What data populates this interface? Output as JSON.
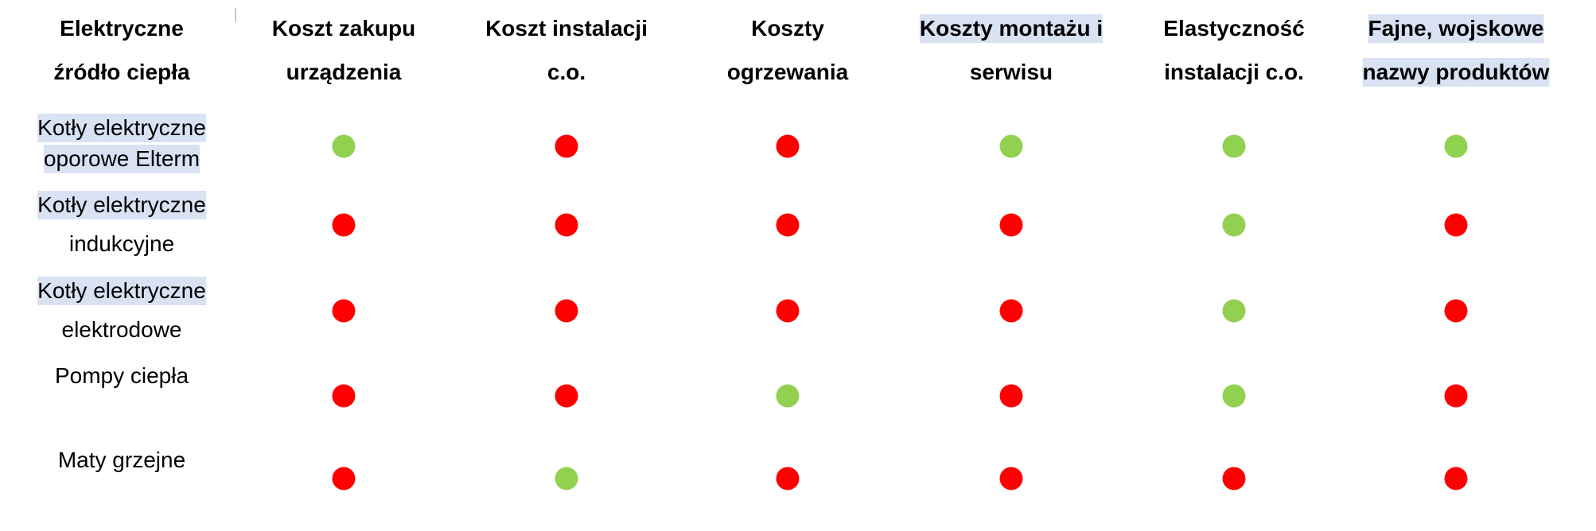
{
  "table": {
    "headers": [
      [
        "Elektryczne",
        "źródło ciepła"
      ],
      [
        "Koszt zakupu",
        "urządzenia"
      ],
      [
        "Koszt instalacji",
        "c.o."
      ],
      [
        "Koszty",
        "ogrzewania"
      ],
      [
        "Koszty montażu i",
        "serwisu"
      ],
      [
        "Elastyczność",
        "instalacji c.o."
      ],
      [
        "Fajne, wojskowe",
        "nazwy produktów"
      ]
    ],
    "rows": [
      {
        "label": [
          "Kotły elektryczne",
          "oporowe Elterm"
        ],
        "cells": [
          "#92d050",
          "#ff0000",
          "#ff0000",
          "#92d050",
          "#92d050",
          "#92d050"
        ]
      },
      {
        "label": [
          "Kotły elektryczne",
          "indukcyjne"
        ],
        "cells": [
          "#ff0000",
          "#ff0000",
          "#ff0000",
          "#ff0000",
          "#92d050",
          "#ff0000"
        ]
      },
      {
        "label": [
          "Kotły elektryczne",
          "elektrodowe"
        ],
        "cells": [
          "#ff0000",
          "#ff0000",
          "#ff0000",
          "#ff0000",
          "#92d050",
          "#ff0000"
        ]
      },
      {
        "label": [
          "Pompy ciepła"
        ],
        "cells": [
          "#ff0000",
          "#ff0000",
          "#92d050",
          "#ff0000",
          "#92d050",
          "#ff0000"
        ]
      },
      {
        "label": [
          "Maty grzejne"
        ],
        "cells": [
          "#ff0000",
          "#92d050",
          "#ff0000",
          "#ff0000",
          "#ff0000",
          "#ff0000"
        ]
      }
    ]
  }
}
